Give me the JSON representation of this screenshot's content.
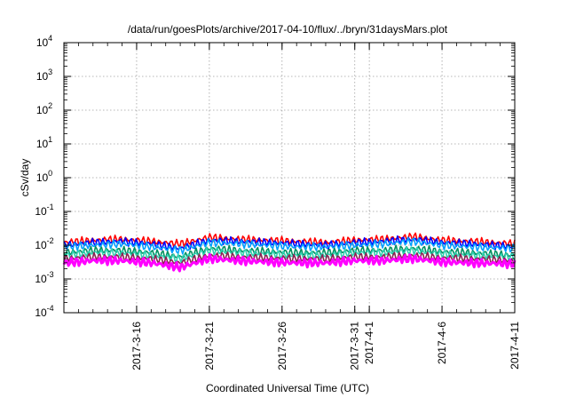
{
  "chart_data": {
    "type": "line",
    "title": "/data/run/goesPlots/archive/2017-04-10/flux/../bryn/31daysMars.plot",
    "xlabel": "Coordinated Universal Time (UTC)",
    "ylabel": "cSv/day",
    "y_scale": "log",
    "ylim": [
      0.0001,
      10000
    ],
    "y_ticks": [
      {
        "base": "10",
        "exp": "-4"
      },
      {
        "base": "10",
        "exp": "-3"
      },
      {
        "base": "10",
        "exp": "-2"
      },
      {
        "base": "10",
        "exp": "-1"
      },
      {
        "base": "10",
        "exp": "0"
      },
      {
        "base": "10",
        "exp": "1"
      },
      {
        "base": "10",
        "exp": "2"
      },
      {
        "base": "10",
        "exp": "3"
      },
      {
        "base": "10",
        "exp": "4"
      }
    ],
    "xlim": [
      "2017-03-11",
      "2017-04-11"
    ],
    "x_ticks": [
      "2017-3-16",
      "2017-3-21",
      "2017-3-26",
      "2017-3-31",
      "2017-4-1",
      "2017-4-6",
      "2017-4-11"
    ],
    "x_tick_dates": [
      "2017-03-16",
      "2017-03-21",
      "2017-03-26",
      "2017-03-31",
      "2017-04-01",
      "2017-04-06",
      "2017-04-11"
    ],
    "grid": true,
    "legend": "none",
    "series": [
      {
        "color": "#ff0000",
        "x": [
          "2017-03-11",
          "2017-03-13",
          "2017-03-15",
          "2017-03-17",
          "2017-03-19",
          "2017-03-21",
          "2017-03-23",
          "2017-03-25",
          "2017-03-27",
          "2017-03-29",
          "2017-03-31",
          "2017-04-02",
          "2017-04-04",
          "2017-04-06",
          "2017-04-08",
          "2017-04-11"
        ],
        "values": [
          0.012,
          0.014,
          0.015,
          0.013,
          0.011,
          0.017,
          0.015,
          0.014,
          0.013,
          0.012,
          0.014,
          0.015,
          0.018,
          0.014,
          0.013,
          0.011
        ]
      },
      {
        "color": "#0000ff",
        "x": [
          "2017-03-11",
          "2017-03-13",
          "2017-03-15",
          "2017-03-17",
          "2017-03-19",
          "2017-03-21",
          "2017-03-23",
          "2017-03-25",
          "2017-03-27",
          "2017-03-29",
          "2017-03-31",
          "2017-04-02",
          "2017-04-04",
          "2017-04-06",
          "2017-04-08",
          "2017-04-11"
        ],
        "values": [
          0.01,
          0.012,
          0.013,
          0.011,
          0.008,
          0.014,
          0.013,
          0.012,
          0.011,
          0.01,
          0.012,
          0.013,
          0.015,
          0.012,
          0.011,
          0.009
        ]
      },
      {
        "color": "#00a0ff",
        "x": [
          "2017-03-11",
          "2017-03-13",
          "2017-03-15",
          "2017-03-17",
          "2017-03-19",
          "2017-03-21",
          "2017-03-23",
          "2017-03-25",
          "2017-03-27",
          "2017-03-29",
          "2017-03-31",
          "2017-04-02",
          "2017-04-04",
          "2017-04-06",
          "2017-04-08",
          "2017-04-11"
        ],
        "values": [
          0.009,
          0.01,
          0.011,
          0.009,
          0.007,
          0.012,
          0.011,
          0.01,
          0.009,
          0.009,
          0.01,
          0.011,
          0.013,
          0.01,
          0.009,
          0.008
        ]
      },
      {
        "color": "#009060",
        "x": [
          "2017-03-11",
          "2017-03-13",
          "2017-03-15",
          "2017-03-17",
          "2017-03-19",
          "2017-03-21",
          "2017-03-23",
          "2017-03-25",
          "2017-03-27",
          "2017-03-29",
          "2017-03-31",
          "2017-04-02",
          "2017-04-04",
          "2017-04-06",
          "2017-04-08",
          "2017-04-11"
        ],
        "values": [
          0.006,
          0.007,
          0.007,
          0.006,
          0.0045,
          0.008,
          0.007,
          0.0065,
          0.006,
          0.006,
          0.007,
          0.007,
          0.008,
          0.0065,
          0.006,
          0.005
        ]
      },
      {
        "color": "#30d0b0",
        "x": [
          "2017-03-11",
          "2017-03-13",
          "2017-03-15",
          "2017-03-17",
          "2017-03-19",
          "2017-03-21",
          "2017-03-23",
          "2017-03-25",
          "2017-03-27",
          "2017-03-29",
          "2017-03-31",
          "2017-04-02",
          "2017-04-04",
          "2017-04-06",
          "2017-04-08",
          "2017-04-11"
        ],
        "values": [
          0.005,
          0.006,
          0.006,
          0.005,
          0.004,
          0.007,
          0.006,
          0.0055,
          0.005,
          0.005,
          0.006,
          0.006,
          0.007,
          0.0055,
          0.005,
          0.0045
        ]
      },
      {
        "color": "#8b2252",
        "x": [
          "2017-03-11",
          "2017-03-13",
          "2017-03-15",
          "2017-03-17",
          "2017-03-19",
          "2017-03-21",
          "2017-03-23",
          "2017-03-25",
          "2017-03-27",
          "2017-03-29",
          "2017-03-31",
          "2017-04-02",
          "2017-04-04",
          "2017-04-06",
          "2017-04-08",
          "2017-04-11"
        ],
        "values": [
          0.004,
          0.0045,
          0.0045,
          0.004,
          0.003,
          0.005,
          0.0045,
          0.0042,
          0.004,
          0.004,
          0.0045,
          0.0045,
          0.005,
          0.0042,
          0.004,
          0.0035
        ]
      },
      {
        "color": "#ff00ff",
        "x": [
          "2017-03-11",
          "2017-03-13",
          "2017-03-15",
          "2017-03-17",
          "2017-03-19",
          "2017-03-21",
          "2017-03-23",
          "2017-03-25",
          "2017-03-27",
          "2017-03-29",
          "2017-03-31",
          "2017-04-02",
          "2017-04-04",
          "2017-04-06",
          "2017-04-08",
          "2017-04-11"
        ],
        "values": [
          0.003,
          0.0035,
          0.0035,
          0.003,
          0.0022,
          0.004,
          0.0035,
          0.0032,
          0.003,
          0.003,
          0.0035,
          0.0035,
          0.004,
          0.0032,
          0.003,
          0.0028
        ]
      }
    ]
  }
}
